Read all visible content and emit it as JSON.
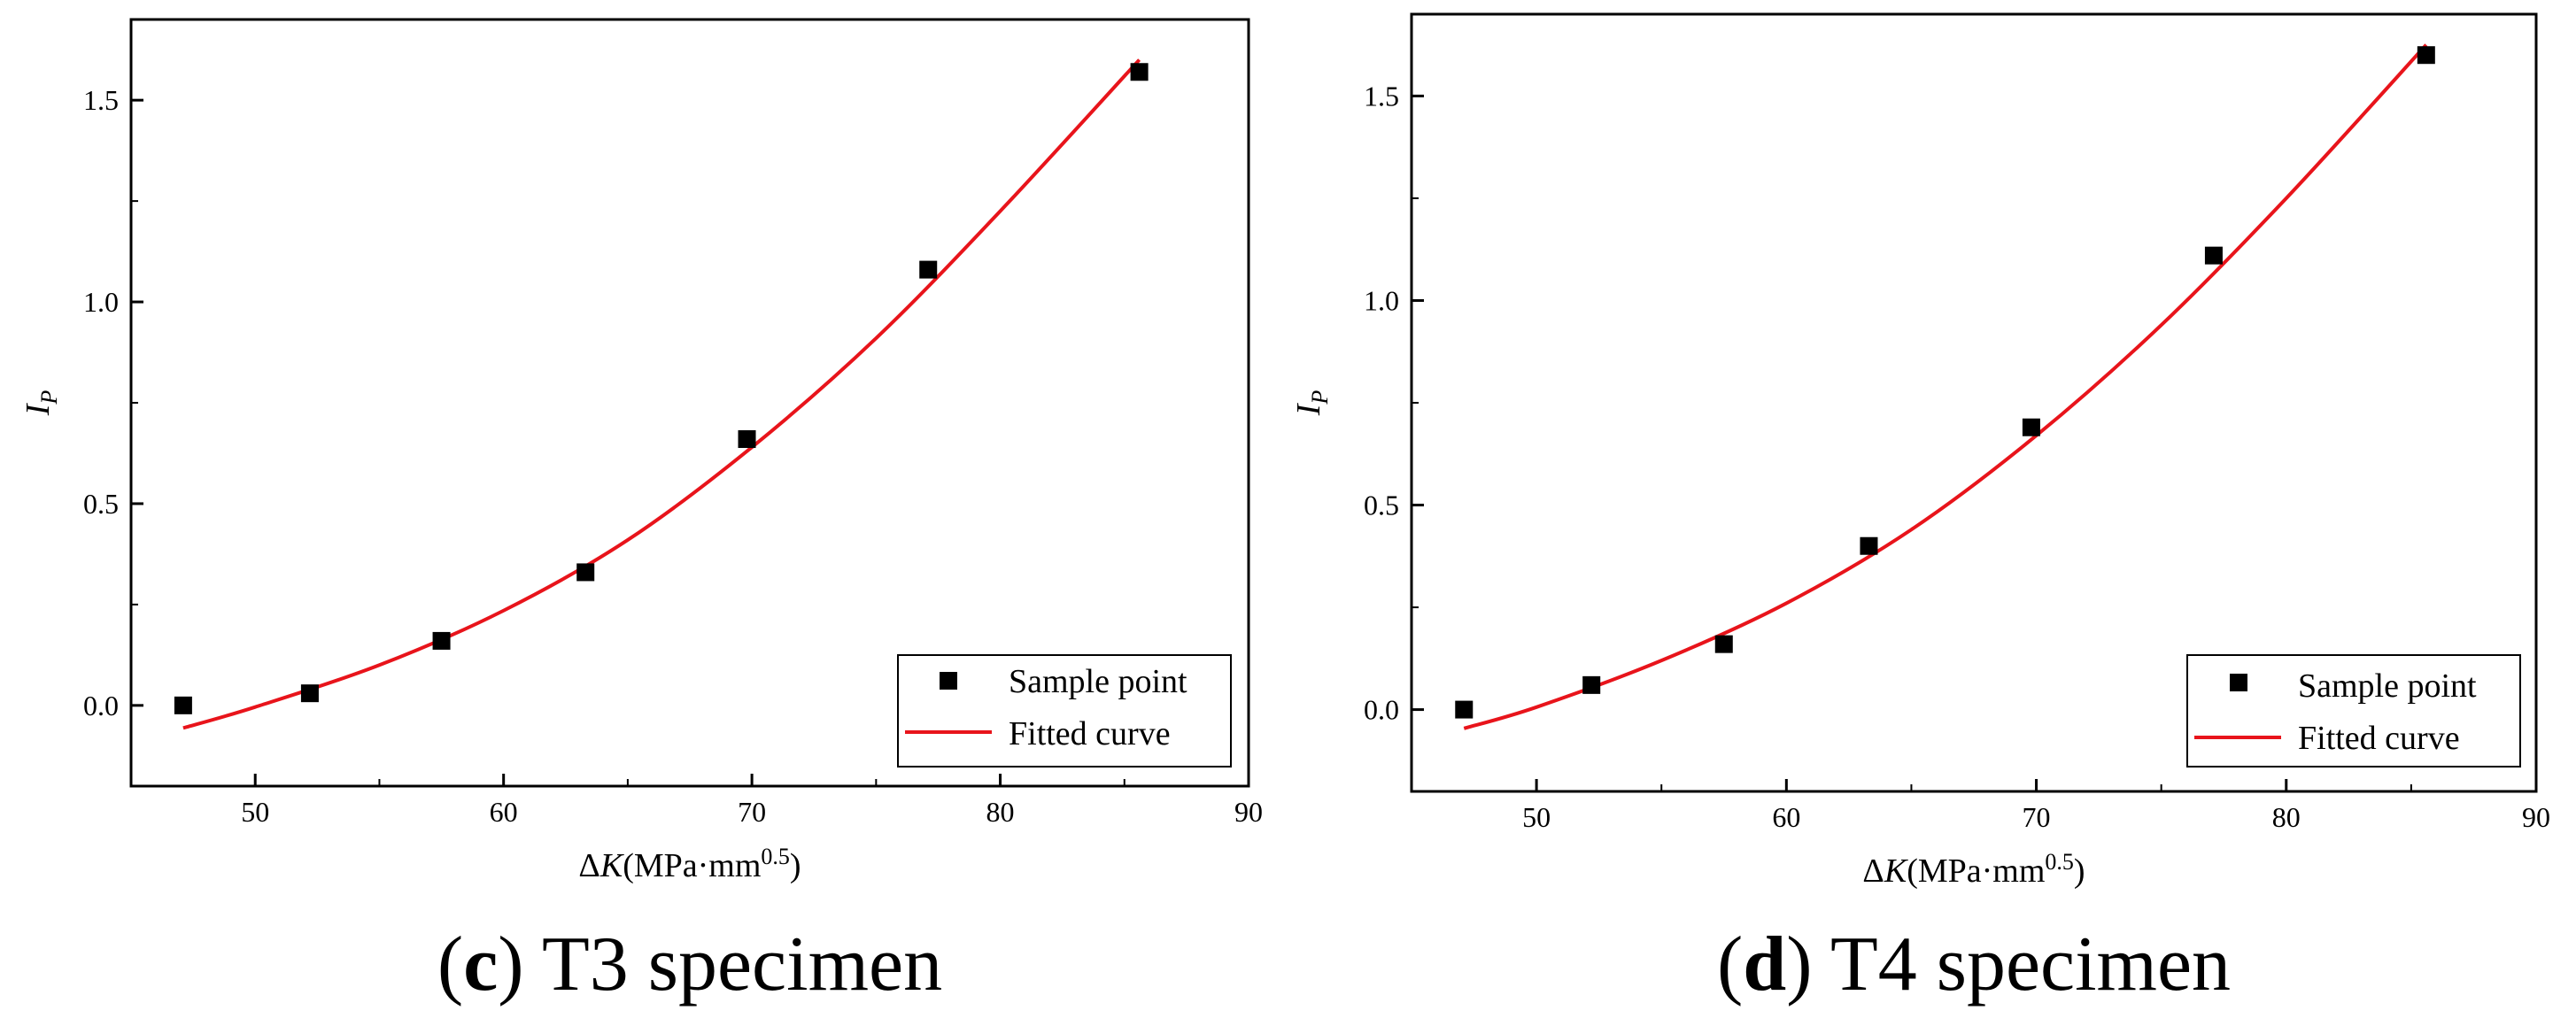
{
  "colors": {
    "fit": "#e8141b",
    "marker": "#000000",
    "axis": "#000000"
  },
  "chart_data": [
    {
      "type": "scatter",
      "panel": "c",
      "caption_letter": "c",
      "caption_text": "T3 specimen",
      "title": "",
      "xlabel_sym": "K",
      "xlabel_unit": "(MPa·mm",
      "xlabel_exp": "0.5",
      "ylabel_sym": "I",
      "ylabel_sub": "P",
      "xlim": [
        45,
        90
      ],
      "ylim": [
        -0.2,
        1.7
      ],
      "xticks": [
        50,
        60,
        70,
        80,
        90
      ],
      "yticks": [
        0.0,
        0.5,
        1.0,
        1.5
      ],
      "xtick_labels": [
        "50",
        "60",
        "70",
        "80",
        "90"
      ],
      "ytick_labels": [
        "0.0",
        "0.5",
        "1.0",
        "1.5"
      ],
      "legend": {
        "position": "bottom-right",
        "points_label": "Sample point",
        "fit_label": "Fitted curve"
      },
      "series": [
        {
          "name": "Sample point",
          "kind": "points",
          "x": [
            47.1,
            52.2,
            57.5,
            63.3,
            69.8,
            77.1,
            85.6
          ],
          "y": [
            0.0,
            0.03,
            0.16,
            0.33,
            0.66,
            1.08,
            1.57
          ]
        },
        {
          "name": "Fitted curve",
          "kind": "line",
          "x": [
            47.1,
            50,
            55,
            60,
            65,
            70,
            75,
            80,
            85.6
          ],
          "y": [
            -0.056,
            -0.004,
            0.1,
            0.235,
            0.41,
            0.64,
            0.91,
            1.225,
            1.6
          ]
        }
      ]
    },
    {
      "type": "scatter",
      "panel": "d",
      "caption_letter": "d",
      "caption_text": "T4 specimen",
      "title": "",
      "xlabel_sym": "K",
      "xlabel_unit": "(MPa·mm",
      "xlabel_exp": "0.5",
      "ylabel_sym": "I",
      "ylabel_sub": "P",
      "xlim": [
        45,
        90
      ],
      "ylim": [
        -0.2,
        1.7
      ],
      "xticks": [
        50,
        60,
        70,
        80,
        90
      ],
      "yticks": [
        0.0,
        0.5,
        1.0,
        1.5
      ],
      "xtick_labels": [
        "50",
        "60",
        "70",
        "80",
        "90"
      ],
      "ytick_labels": [
        "0.0",
        "0.5",
        "1.0",
        "1.5"
      ],
      "legend": {
        "position": "bottom-right",
        "points_label": "Sample point",
        "fit_label": "Fitted curve"
      },
      "series": [
        {
          "name": "Sample point",
          "kind": "points",
          "x": [
            47.1,
            52.2,
            57.5,
            63.3,
            69.8,
            77.1,
            85.6
          ],
          "y": [
            0.0,
            0.06,
            0.16,
            0.4,
            0.69,
            1.11,
            1.6
          ]
        },
        {
          "name": "Fitted curve",
          "kind": "line",
          "x": [
            47.1,
            50,
            55,
            60,
            65,
            70,
            75,
            80,
            85.6
          ],
          "y": [
            -0.046,
            0.006,
            0.12,
            0.26,
            0.44,
            0.67,
            0.94,
            1.25,
            1.625
          ]
        }
      ]
    }
  ]
}
